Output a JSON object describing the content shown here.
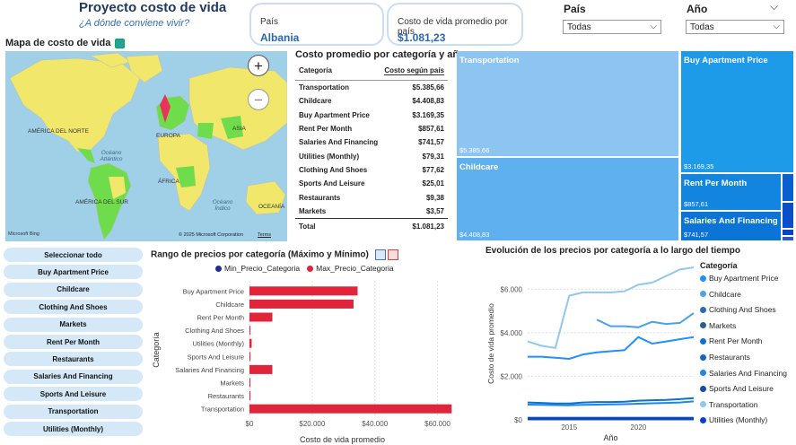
{
  "header": {
    "title": "Proyecto costo de vida",
    "subtitle": "¿A dónde conviene vivir?"
  },
  "cards": {
    "country": {
      "label": "País",
      "value": "Albania"
    },
    "avg_cost": {
      "label": "Costo de vida promedio por país",
      "value": "$1.081,23"
    }
  },
  "slicers": {
    "country": {
      "title": "País",
      "selected": "Todas"
    },
    "year": {
      "title": "Año",
      "selected": "Todas"
    }
  },
  "map": {
    "title": "Mapa de costo de vida",
    "labels": [
      "AMÉRICA DEL NORTE",
      "EUROPA",
      "ASIA",
      "Océano Atlántico",
      "ÁFRICA",
      "AMÉRICA DEL SUR",
      "Océano Índico",
      "OCEANÍA"
    ],
    "attribution": "© 2025 Microsoft Corporation",
    "attribution_link": "Terms",
    "bing": "Microsoft Bing",
    "zoom_in": "+",
    "zoom_out": "−"
  },
  "table": {
    "title": "Costo promedio por categoría y año",
    "col_category": "Categoría",
    "col_cost": "Costo según país",
    "rows": [
      {
        "category": "Transportation",
        "cost": "$5.385,66"
      },
      {
        "category": "Childcare",
        "cost": "$4.408,83"
      },
      {
        "category": "Buy Apartment Price",
        "cost": "$3.169,35"
      },
      {
        "category": "Rent Per Month",
        "cost": "$857,61"
      },
      {
        "category": "Salaries And Financing",
        "cost": "$741,57"
      },
      {
        "category": "Utilities (Monthly)",
        "cost": "$79,31"
      },
      {
        "category": "Clothing And Shoes",
        "cost": "$77,62"
      },
      {
        "category": "Sports And Leisure",
        "cost": "$25,01"
      },
      {
        "category": "Restaurants",
        "cost": "$9,38"
      },
      {
        "category": "Markets",
        "cost": "$3,57"
      }
    ],
    "total_label": "Total",
    "total_value": "$1.081,23"
  },
  "treemap": {
    "tiles": [
      {
        "name": "Transportation",
        "value": "$5.385,66"
      },
      {
        "name": "Childcare",
        "value": "$4.408,83"
      },
      {
        "name": "Buy Apartment Price",
        "value": "$3.169,35"
      },
      {
        "name": "Rent Per Month",
        "value": "$857,61"
      },
      {
        "name": "Salaries And Financing",
        "value": "$741,57"
      }
    ]
  },
  "buttons": [
    "Seleccionar todo",
    "Buy Apartment Price",
    "Childcare",
    "Clothing And Shoes",
    "Markets",
    "Rent Per Month",
    "Restaurants",
    "Salaries And Financing",
    "Sports And Leisure",
    "Transportation",
    "Utilities (Monthly)"
  ],
  "chart_data": [
    {
      "type": "bar",
      "title": "Rango de precios por categoría (Máximo y Mínimo)",
      "xlabel": "Costo de vida promedio",
      "ylabel": "Categoría",
      "xlim": [
        0,
        65000
      ],
      "xticks": [
        "$0",
        "$20.000",
        "$40.000",
        "$60.000"
      ],
      "categories": [
        "Buy Apartment Price",
        "Childcare",
        "Rent Per Month",
        "Clothing And Shoes",
        "Utilities (Monthly)",
        "Sports And Leisure",
        "Salaries And Financing",
        "Markets",
        "Restaurants",
        "Transportation"
      ],
      "series": [
        {
          "name": "Min_Precio_Categoria",
          "color": "#1f2f8f",
          "values": [
            0,
            0,
            0,
            0,
            0,
            0,
            0,
            0,
            0,
            0
          ]
        },
        {
          "name": "Max_Precio_Categoria",
          "color": "#e0243a",
          "values": [
            34500,
            33200,
            7300,
            250,
            700,
            200,
            7300,
            60,
            130,
            64500
          ]
        }
      ],
      "legend_position": "top",
      "grid": true
    },
    {
      "type": "line",
      "title": "Evolución de los precios por categoría a lo largo del tiempo",
      "xlabel": "Año",
      "ylabel": "Costo de vida promedio",
      "ylim": [
        0,
        7000
      ],
      "yticks": [
        "$0",
        "$2.000",
        "$4.000",
        "$6.000"
      ],
      "xticks": [
        "2015",
        "2020"
      ],
      "x": [
        2012,
        2013,
        2014,
        2015,
        2016,
        2017,
        2018,
        2019,
        2020,
        2021,
        2022,
        2023,
        2024
      ],
      "legend_title": "Categoría",
      "legend_position": "right",
      "series": [
        {
          "name": "Buy Apartment Price",
          "color": "#1e90ff",
          "values": [
            2900,
            2900,
            2850,
            2800,
            3000,
            3100,
            3150,
            3200,
            3800,
            3500,
            3600,
            3700,
            3800
          ]
        },
        {
          "name": "Childcare",
          "color": "#4aa3e8",
          "values": [
            null,
            null,
            null,
            null,
            null,
            4600,
            4300,
            4300,
            4250,
            4500,
            4400,
            4450,
            4900
          ]
        },
        {
          "name": "Clothing And Shoes",
          "color": "#2b6cb0",
          "values": [
            100,
            100,
            100,
            100,
            100,
            100,
            100,
            100,
            100,
            100,
            100,
            100,
            100
          ]
        },
        {
          "name": "Markets",
          "color": "#2a5d8f",
          "values": [
            50,
            50,
            50,
            50,
            50,
            50,
            50,
            50,
            50,
            50,
            50,
            50,
            50
          ]
        },
        {
          "name": "Rent Per Month",
          "color": "#0f6fd0",
          "values": [
            800,
            780,
            750,
            750,
            800,
            820,
            820,
            830,
            880,
            900,
            920,
            950,
            1000
          ]
        },
        {
          "name": "Restaurants",
          "color": "#1565c0",
          "values": [
            20,
            20,
            20,
            20,
            20,
            20,
            20,
            20,
            20,
            20,
            20,
            20,
            20
          ]
        },
        {
          "name": "Salaries And Financing",
          "color": "#1e88e5",
          "values": [
            700,
            690,
            680,
            670,
            690,
            700,
            710,
            720,
            740,
            760,
            780,
            800,
            850
          ]
        },
        {
          "name": "Sports And Leisure",
          "color": "#1a4c9c",
          "values": [
            30,
            30,
            30,
            30,
            30,
            30,
            30,
            30,
            30,
            30,
            30,
            30,
            30
          ]
        },
        {
          "name": "Transportation",
          "color": "#90c8f0",
          "values": [
            3600,
            3400,
            3300,
            5700,
            5850,
            5850,
            5850,
            5900,
            6200,
            6300,
            6600,
            6900,
            7000
          ]
        },
        {
          "name": "Utilities (Monthly)",
          "color": "#0b3fd0",
          "values": [
            80,
            80,
            80,
            80,
            80,
            80,
            80,
            80,
            80,
            80,
            80,
            80,
            80
          ]
        }
      ]
    }
  ]
}
